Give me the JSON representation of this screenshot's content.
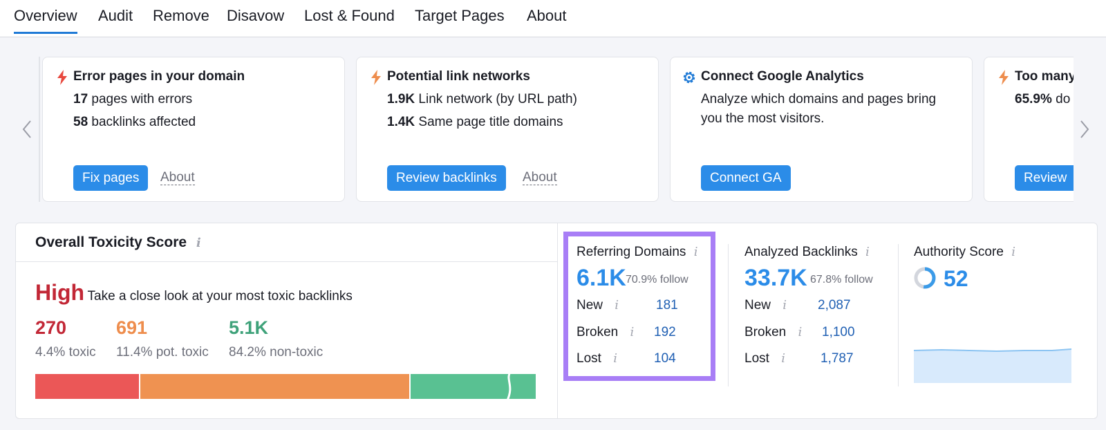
{
  "tabs": [
    "Overview",
    "Audit",
    "Remove",
    "Disavow",
    "Lost & Found",
    "Target Pages",
    "About"
  ],
  "cards": [
    {
      "title": "Error pages in your domain",
      "icon": "lightning-icon",
      "lines": [
        {
          "bold": "17",
          "text": " pages with errors"
        },
        {
          "bold": "58",
          "text": " backlinks affected"
        }
      ],
      "button": "Fix pages",
      "about": "About"
    },
    {
      "title": "Potential link networks",
      "icon": "lightning-icon",
      "lines": [
        {
          "bold": "1.9K",
          "text": " Link network (by URL path)"
        },
        {
          "bold": "1.4K",
          "text": " Same page title domains"
        }
      ],
      "button": "Review backlinks",
      "about": "About"
    },
    {
      "title": "Connect Google Analytics",
      "icon": "gear-icon",
      "desc1": "Analyze which domains and pages bring",
      "desc2": "you the most visitors.",
      "button": "Connect GA"
    },
    {
      "title": "Too many",
      "icon": "lightning-icon",
      "lines": [
        {
          "bold": "65.9%",
          "text": " do"
        }
      ],
      "button": "Review"
    }
  ],
  "toxicity": {
    "title": "Overall Toxicity Score",
    "level": "High",
    "level_desc": "Take a close look at your most toxic backlinks",
    "stats": [
      {
        "value": "270",
        "label": "4.4% toxic",
        "color": "#c22736"
      },
      {
        "value": "691",
        "label": "11.4% pot. toxic",
        "color": "#ee8d4d"
      },
      {
        "value": "5.1K",
        "label": "84.2% non-toxic",
        "color": "#3fa27a"
      }
    ],
    "bar_colors": [
      "#eb5757",
      "#ef9251",
      "#59c192"
    ]
  },
  "referring": {
    "title": "Referring Domains",
    "value": "6.1K",
    "follow": "70.9% follow",
    "rows": [
      {
        "label": "New",
        "value": "181"
      },
      {
        "label": "Broken",
        "value": "192"
      },
      {
        "label": "Lost",
        "value": "104"
      }
    ]
  },
  "backlinks": {
    "title": "Analyzed Backlinks",
    "value": "33.7K",
    "follow": "67.8% follow",
    "rows": [
      {
        "label": "New",
        "value": "2,087"
      },
      {
        "label": "Broken",
        "value": "1,100"
      },
      {
        "label": "Lost",
        "value": "1,787"
      }
    ]
  },
  "authority": {
    "title": "Authority Score",
    "value": "52",
    "ring_fraction": 0.52
  },
  "info_glyph": "i",
  "colors": {
    "accent": "#2b8ce8",
    "highlight": "#a87ef6"
  }
}
